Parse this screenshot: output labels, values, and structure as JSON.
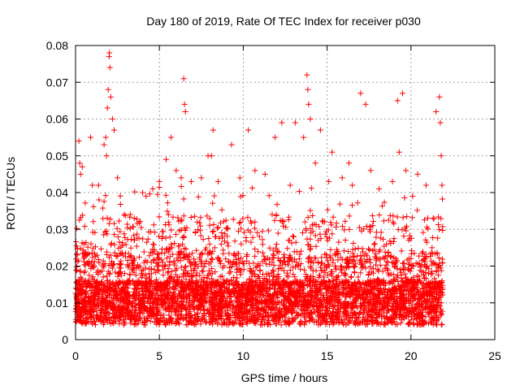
{
  "chart_data": {
    "type": "scatter",
    "title": "Day 180 of 2019, Rate Of TEC Index for receiver p030",
    "xlabel": "GPS time / hours",
    "ylabel": "ROTI / TECUs",
    "xlim": [
      0,
      25
    ],
    "ylim": [
      0,
      0.08
    ],
    "x_ticks": [
      "0",
      "5",
      "10",
      "15",
      "20",
      "25"
    ],
    "y_ticks": [
      "0",
      "0.01",
      "0.02",
      "0.03",
      "0.04",
      "0.05",
      "0.06",
      "0.07",
      "0.08"
    ],
    "grid": true,
    "legend": "none",
    "marker": "plus",
    "color": "#ff0000",
    "x_extent": [
      0.0,
      21.9
    ],
    "series": [
      {
        "points": [
          [
            0.1,
            0.012
          ],
          [
            0.2,
            0.054
          ],
          [
            0.25,
            0.048
          ],
          [
            0.3,
            0.045
          ],
          [
            0.4,
            0.047
          ],
          [
            0.9,
            0.055
          ],
          [
            1.0,
            0.042
          ],
          [
            1.4,
            0.038
          ],
          [
            1.7,
            0.053
          ],
          [
            1.8,
            0.055
          ],
          [
            1.85,
            0.05
          ],
          [
            1.9,
            0.063
          ],
          [
            1.95,
            0.068
          ],
          [
            2.0,
            0.077
          ],
          [
            2.02,
            0.078
          ],
          [
            2.05,
            0.074
          ],
          [
            2.1,
            0.066
          ],
          [
            2.2,
            0.06
          ],
          [
            2.3,
            0.057
          ],
          [
            2.5,
            0.044
          ],
          [
            2.9,
            0.034
          ],
          [
            3.5,
            0.033
          ],
          [
            4.0,
            0.04
          ],
          [
            4.2,
            0.039
          ],
          [
            4.6,
            0.041
          ],
          [
            5.0,
            0.043
          ],
          [
            5.4,
            0.049
          ],
          [
            5.7,
            0.055
          ],
          [
            6.0,
            0.046
          ],
          [
            6.3,
            0.044
          ],
          [
            6.45,
            0.071
          ],
          [
            6.5,
            0.064
          ],
          [
            6.55,
            0.062
          ],
          [
            6.9,
            0.043
          ],
          [
            7.5,
            0.044
          ],
          [
            7.9,
            0.05
          ],
          [
            8.1,
            0.05
          ],
          [
            8.2,
            0.057
          ],
          [
            8.5,
            0.043
          ],
          [
            9.3,
            0.053
          ],
          [
            9.8,
            0.044
          ],
          [
            10.3,
            0.057
          ],
          [
            10.7,
            0.046
          ],
          [
            11.3,
            0.045
          ],
          [
            11.9,
            0.055
          ],
          [
            12.3,
            0.059
          ],
          [
            12.8,
            0.042
          ],
          [
            13.1,
            0.059
          ],
          [
            13.6,
            0.055
          ],
          [
            13.8,
            0.072
          ],
          [
            13.85,
            0.068
          ],
          [
            13.9,
            0.064
          ],
          [
            14.0,
            0.06
          ],
          [
            14.3,
            0.048
          ],
          [
            14.6,
            0.057
          ],
          [
            15.1,
            0.043
          ],
          [
            15.3,
            0.051
          ],
          [
            15.9,
            0.044
          ],
          [
            16.3,
            0.048
          ],
          [
            16.5,
            0.042
          ],
          [
            17.0,
            0.067
          ],
          [
            17.3,
            0.064
          ],
          [
            17.6,
            0.046
          ],
          [
            18.1,
            0.041
          ],
          [
            18.9,
            0.043
          ],
          [
            19.2,
            0.065
          ],
          [
            19.5,
            0.067
          ],
          [
            19.3,
            0.051
          ],
          [
            19.7,
            0.046
          ],
          [
            20.1,
            0.039
          ],
          [
            20.4,
            0.045
          ],
          [
            20.9,
            0.042
          ],
          [
            21.5,
            0.062
          ],
          [
            21.7,
            0.066
          ],
          [
            21.75,
            0.059
          ],
          [
            21.8,
            0.05
          ],
          [
            21.85,
            0.042
          ]
        ]
      }
    ]
  }
}
